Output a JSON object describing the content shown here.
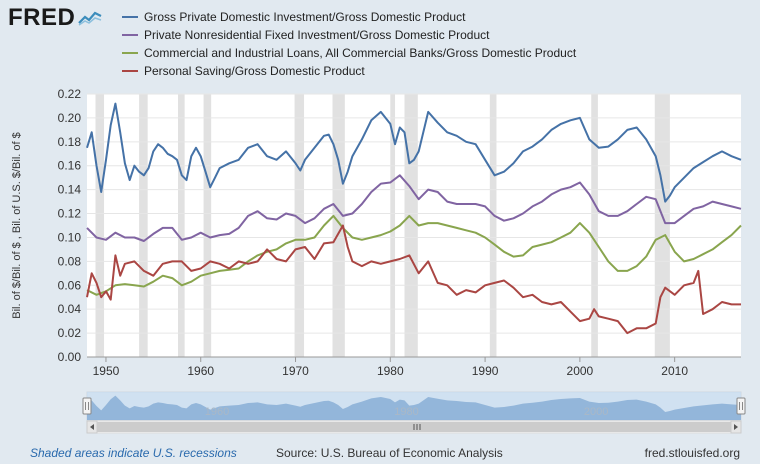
{
  "header": {
    "logo_text": "FRED",
    "logo_icon": "fred-chart-logo-icon"
  },
  "colors": {
    "gross_private_investment": "#4572a7",
    "private_nonresidential_investment": "#8064a2",
    "commercial_industrial_loans": "#89a54e",
    "personal_saving": "#aa4643",
    "recession_band": "#e1e1e1",
    "page_background": "#e1e9f0",
    "plot_background": "#ffffff"
  },
  "chart_data": {
    "type": "line",
    "title": "",
    "xlabel": "",
    "ylabel": "Bil. of $/Bil. of $ , Bil. of U.S. $/Bil. of $",
    "xlim": [
      1948,
      2017
    ],
    "ylim": [
      0,
      0.22
    ],
    "grid": true,
    "legend_position": "top",
    "x_ticks": [
      "1950",
      "1960",
      "1970",
      "1980",
      "1990",
      "2000",
      "2010"
    ],
    "y_ticks": [
      "0.00",
      "0.02",
      "0.04",
      "0.06",
      "0.08",
      "0.10",
      "0.12",
      "0.14",
      "0.16",
      "0.18",
      "0.20",
      "0.22"
    ],
    "recessions": [
      [
        1948.9,
        1949.8
      ],
      [
        1953.5,
        1954.4
      ],
      [
        1957.6,
        1958.3
      ],
      [
        1960.3,
        1961.1
      ],
      [
        1969.9,
        1970.9
      ],
      [
        1973.9,
        1975.2
      ],
      [
        1980.0,
        1980.5
      ],
      [
        1981.5,
        1982.9
      ],
      [
        1990.5,
        1991.2
      ],
      [
        2001.2,
        2001.9
      ],
      [
        2007.9,
        2009.5
      ]
    ],
    "series": [
      {
        "name": "Gross Private Domestic Investment/Gross Domestic Product",
        "x": [
          1948,
          1948.5,
          1949,
          1949.5,
          1950,
          1950.5,
          1951,
          1951.5,
          1952,
          1952.5,
          1953,
          1953.5,
          1954,
          1954.5,
          1955,
          1955.5,
          1956,
          1956.5,
          1957,
          1957.5,
          1958,
          1958.5,
          1959,
          1959.5,
          1960,
          1960.5,
          1961,
          1961.5,
          1962,
          1963,
          1964,
          1965,
          1966,
          1967,
          1968,
          1969,
          1970,
          1970.5,
          1971,
          1972,
          1973,
          1973.5,
          1974,
          1974.5,
          1975,
          1975.5,
          1976,
          1977,
          1978,
          1979,
          1980,
          1980.5,
          1981,
          1981.5,
          1982,
          1982.5,
          1983,
          1984,
          1985,
          1986,
          1987,
          1988,
          1989,
          1990,
          1991,
          1992,
          1993,
          1994,
          1995,
          1996,
          1997,
          1998,
          1999,
          2000,
          2001,
          2002,
          2003,
          2004,
          2005,
          2006,
          2007,
          2008,
          2008.5,
          2009,
          2009.5,
          2010,
          2011,
          2012,
          2013,
          2014,
          2015,
          2016,
          2017
        ],
        "values": [
          0.175,
          0.188,
          0.16,
          0.138,
          0.165,
          0.194,
          0.212,
          0.188,
          0.162,
          0.148,
          0.16,
          0.155,
          0.152,
          0.158,
          0.172,
          0.178,
          0.175,
          0.17,
          0.168,
          0.165,
          0.152,
          0.148,
          0.168,
          0.175,
          0.168,
          0.155,
          0.142,
          0.15,
          0.158,
          0.162,
          0.165,
          0.175,
          0.178,
          0.168,
          0.165,
          0.172,
          0.162,
          0.156,
          0.165,
          0.175,
          0.185,
          0.186,
          0.178,
          0.165,
          0.145,
          0.155,
          0.168,
          0.182,
          0.198,
          0.205,
          0.195,
          0.178,
          0.192,
          0.188,
          0.162,
          0.165,
          0.172,
          0.205,
          0.196,
          0.188,
          0.185,
          0.18,
          0.178,
          0.165,
          0.152,
          0.155,
          0.162,
          0.172,
          0.176,
          0.182,
          0.19,
          0.195,
          0.198,
          0.2,
          0.182,
          0.175,
          0.176,
          0.182,
          0.19,
          0.192,
          0.182,
          0.168,
          0.152,
          0.13,
          0.135,
          0.142,
          0.15,
          0.158,
          0.163,
          0.168,
          0.172,
          0.168,
          0.165
        ]
      },
      {
        "name": "Private Nonresidential Fixed Investment/Gross Domestic Product",
        "x": [
          1948,
          1949,
          1950,
          1951,
          1952,
          1953,
          1954,
          1955,
          1956,
          1957,
          1958,
          1959,
          1960,
          1961,
          1962,
          1963,
          1964,
          1965,
          1966,
          1967,
          1968,
          1969,
          1970,
          1971,
          1972,
          1973,
          1974,
          1975,
          1976,
          1977,
          1978,
          1979,
          1980,
          1981,
          1982,
          1983,
          1984,
          1985,
          1986,
          1987,
          1988,
          1989,
          1990,
          1991,
          1992,
          1993,
          1994,
          1995,
          1996,
          1997,
          1998,
          1999,
          2000,
          2001,
          2002,
          2003,
          2004,
          2005,
          2006,
          2007,
          2008,
          2009,
          2010,
          2011,
          2012,
          2013,
          2014,
          2015,
          2016,
          2017
        ],
        "values": [
          0.108,
          0.1,
          0.098,
          0.104,
          0.1,
          0.1,
          0.097,
          0.103,
          0.108,
          0.108,
          0.098,
          0.1,
          0.104,
          0.1,
          0.102,
          0.103,
          0.108,
          0.118,
          0.122,
          0.116,
          0.115,
          0.12,
          0.118,
          0.112,
          0.116,
          0.124,
          0.128,
          0.118,
          0.12,
          0.128,
          0.138,
          0.145,
          0.146,
          0.152,
          0.143,
          0.132,
          0.14,
          0.138,
          0.13,
          0.128,
          0.128,
          0.128,
          0.126,
          0.118,
          0.114,
          0.116,
          0.12,
          0.126,
          0.13,
          0.136,
          0.14,
          0.142,
          0.146,
          0.136,
          0.122,
          0.118,
          0.118,
          0.122,
          0.128,
          0.134,
          0.132,
          0.112,
          0.112,
          0.118,
          0.124,
          0.126,
          0.13,
          0.128,
          0.126,
          0.124
        ]
      },
      {
        "name": "Commercial and Industrial Loans, All Commercial Banks/Gross Domestic Product",
        "x": [
          1948,
          1949,
          1950,
          1951,
          1952,
          1953,
          1954,
          1955,
          1956,
          1957,
          1958,
          1959,
          1960,
          1961,
          1962,
          1963,
          1964,
          1965,
          1966,
          1967,
          1968,
          1969,
          1970,
          1971,
          1972,
          1973,
          1974,
          1975,
          1976,
          1977,
          1978,
          1979,
          1980,
          1981,
          1982,
          1983,
          1984,
          1985,
          1986,
          1987,
          1988,
          1989,
          1990,
          1991,
          1992,
          1993,
          1994,
          1995,
          1996,
          1997,
          1998,
          1999,
          2000,
          2001,
          2002,
          2003,
          2004,
          2005,
          2006,
          2007,
          2008,
          2009,
          2010,
          2011,
          2012,
          2013,
          2014,
          2015,
          2016,
          2017
        ],
        "values": [
          0.056,
          0.052,
          0.055,
          0.06,
          0.061,
          0.06,
          0.059,
          0.063,
          0.068,
          0.066,
          0.06,
          0.063,
          0.068,
          0.07,
          0.072,
          0.073,
          0.074,
          0.08,
          0.085,
          0.088,
          0.09,
          0.095,
          0.098,
          0.098,
          0.1,
          0.11,
          0.118,
          0.108,
          0.1,
          0.098,
          0.1,
          0.102,
          0.105,
          0.11,
          0.118,
          0.11,
          0.112,
          0.112,
          0.11,
          0.108,
          0.106,
          0.104,
          0.1,
          0.094,
          0.088,
          0.084,
          0.085,
          0.092,
          0.094,
          0.096,
          0.1,
          0.104,
          0.112,
          0.104,
          0.092,
          0.08,
          0.072,
          0.072,
          0.076,
          0.084,
          0.098,
          0.102,
          0.088,
          0.08,
          0.082,
          0.086,
          0.09,
          0.096,
          0.102,
          0.11
        ]
      },
      {
        "name": "Personal Saving/Gross Domestic Product",
        "x": [
          1948,
          1948.5,
          1949,
          1949.5,
          1950,
          1950.5,
          1951,
          1951.5,
          1952,
          1953,
          1954,
          1955,
          1956,
          1957,
          1958,
          1959,
          1960,
          1961,
          1962,
          1963,
          1964,
          1965,
          1966,
          1967,
          1968,
          1969,
          1970,
          1971,
          1972,
          1973,
          1974,
          1975,
          1975.5,
          1976,
          1977,
          1978,
          1979,
          1980,
          1981,
          1982,
          1983,
          1984,
          1985,
          1986,
          1987,
          1988,
          1989,
          1990,
          1991,
          1992,
          1993,
          1994,
          1995,
          1996,
          1997,
          1998,
          1999,
          2000,
          2001,
          2001.5,
          2002,
          2003,
          2004,
          2005,
          2006,
          2007,
          2008,
          2008.5,
          2009,
          2010,
          2011,
          2012,
          2012.5,
          2013,
          2014,
          2015,
          2016,
          2017
        ],
        "values": [
          0.05,
          0.07,
          0.062,
          0.05,
          0.055,
          0.048,
          0.085,
          0.068,
          0.078,
          0.08,
          0.072,
          0.068,
          0.078,
          0.08,
          0.08,
          0.072,
          0.074,
          0.08,
          0.078,
          0.074,
          0.08,
          0.078,
          0.08,
          0.09,
          0.082,
          0.08,
          0.09,
          0.092,
          0.082,
          0.095,
          0.096,
          0.11,
          0.092,
          0.08,
          0.076,
          0.08,
          0.078,
          0.08,
          0.082,
          0.085,
          0.07,
          0.08,
          0.062,
          0.06,
          0.052,
          0.056,
          0.054,
          0.06,
          0.062,
          0.064,
          0.058,
          0.05,
          0.052,
          0.046,
          0.044,
          0.046,
          0.038,
          0.03,
          0.032,
          0.04,
          0.034,
          0.032,
          0.03,
          0.02,
          0.024,
          0.024,
          0.028,
          0.05,
          0.058,
          0.052,
          0.06,
          0.062,
          0.072,
          0.036,
          0.04,
          0.046,
          0.044,
          0.044
        ]
      }
    ]
  },
  "navigator": {
    "x_labels": [
      "1960",
      "1980",
      "2000"
    ],
    "scroll_left_icon": "chevron-left-icon",
    "scroll_right_icon": "chevron-right-icon",
    "grip_icon": "grip-icon"
  },
  "footer": {
    "note": "Shaded areas indicate U.S. recessions",
    "source": "Source: U.S. Bureau of Economic Analysis",
    "site": "fred.stlouisfed.org"
  }
}
